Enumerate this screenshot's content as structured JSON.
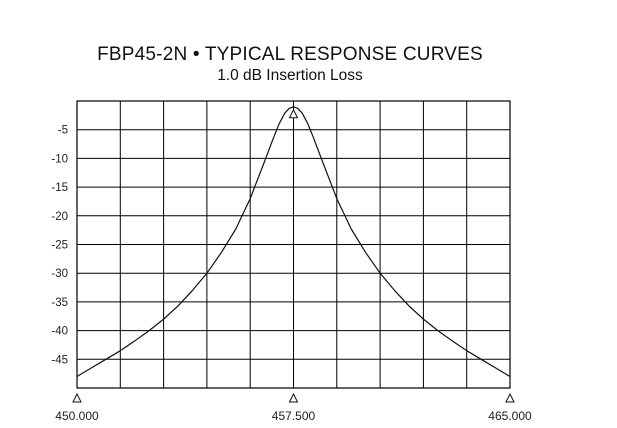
{
  "chart_data": {
    "type": "line",
    "title": "FBP45-2N • TYPICAL RESPONSE CURVES",
    "subtitle": "1.0 dB Insertion Loss",
    "xlabel": "",
    "ylabel": "",
    "xlim": [
      450.0,
      465.0
    ],
    "ylim": [
      -50,
      0
    ],
    "xticks": [
      {
        "value": 450.0,
        "label": "450.000"
      },
      {
        "value": 457.5,
        "label": "457.500"
      },
      {
        "value": 465.0,
        "label": "465.000"
      }
    ],
    "yticks": [
      {
        "value": -5,
        "label": "-5"
      },
      {
        "value": -10,
        "label": "-10"
      },
      {
        "value": -15,
        "label": "-15"
      },
      {
        "value": -20,
        "label": "-20"
      },
      {
        "value": -25,
        "label": "-25"
      },
      {
        "value": -30,
        "label": "-30"
      },
      {
        "value": -35,
        "label": "-35"
      },
      {
        "value": -40,
        "label": "-40"
      },
      {
        "value": -45,
        "label": "-45"
      }
    ],
    "grid": true,
    "legend": "none",
    "line_color": "#111111",
    "series": [
      {
        "x": [
          450.0,
          450.5,
          451.0,
          451.5,
          452.0,
          452.5,
          453.0,
          453.5,
          454.0,
          454.5,
          455.0,
          455.5,
          456.0,
          456.5,
          456.8,
          457.0,
          457.2,
          457.35,
          457.5,
          457.65,
          457.8,
          458.0,
          458.2,
          458.5,
          459.0,
          459.5,
          460.0,
          460.5,
          461.0,
          461.5,
          462.0,
          462.5,
          463.0,
          463.5,
          464.0,
          464.5,
          465.0
        ],
        "y": [
          -48.0,
          -46.5,
          -45.0,
          -43.5,
          -41.8,
          -40.0,
          -38.0,
          -35.7,
          -33.0,
          -30.0,
          -26.4,
          -22.3,
          -17.0,
          -10.5,
          -6.5,
          -4.0,
          -2.1,
          -1.3,
          -1.0,
          -1.3,
          -2.1,
          -4.0,
          -6.5,
          -10.5,
          -17.0,
          -22.3,
          -26.4,
          -30.0,
          -33.0,
          -35.7,
          -38.0,
          -40.0,
          -41.8,
          -43.5,
          -45.0,
          -46.5,
          -48.0
        ]
      }
    ],
    "markers": [
      {
        "x": 450.0,
        "y": -50
      },
      {
        "x": 457.5,
        "y": -50
      },
      {
        "x": 465.0,
        "y": -50
      },
      {
        "x": 457.5,
        "y": -1.0
      }
    ]
  }
}
